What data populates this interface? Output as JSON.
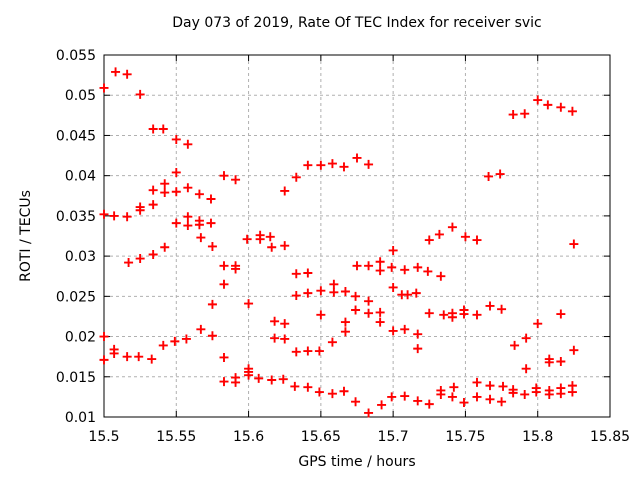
{
  "page": {
    "background": "#ffffff"
  },
  "chart_data": {
    "type": "scatter",
    "title": "Day 073 of 2019, Rate Of TEC Index for receiver svic",
    "xlabel": "GPS time / hours",
    "ylabel": "ROTI / TECUs",
    "xlim": [
      15.5,
      15.85
    ],
    "ylim": [
      0.01,
      0.055
    ],
    "x_ticks": [
      15.5,
      15.55,
      15.6,
      15.65,
      15.7,
      15.75,
      15.8,
      15.85
    ],
    "y_ticks": [
      0.01,
      0.015,
      0.02,
      0.025,
      0.03,
      0.035,
      0.04,
      0.045,
      0.05,
      0.055
    ],
    "grid": true,
    "grid_color": "#b0b0b0",
    "legend": "none",
    "marker": "plus",
    "marker_color": "#ff0000",
    "frame_color": "#000000",
    "series": [
      {
        "name": "ROTI",
        "points": [
          [
            15.508,
            0.0529
          ],
          [
            15.516,
            0.0526
          ],
          [
            15.5,
            0.0509
          ],
          [
            15.525,
            0.0501
          ],
          [
            15.534,
            0.0458
          ],
          [
            15.541,
            0.0458
          ],
          [
            15.55,
            0.0445
          ],
          [
            15.558,
            0.0439
          ],
          [
            15.55,
            0.0404
          ],
          [
            15.583,
            0.04
          ],
          [
            15.591,
            0.0395
          ],
          [
            15.542,
            0.039
          ],
          [
            15.534,
            0.0382
          ],
          [
            15.542,
            0.0379
          ],
          [
            15.55,
            0.038
          ],
          [
            15.558,
            0.0385
          ],
          [
            15.566,
            0.0377
          ],
          [
            15.574,
            0.0371
          ],
          [
            15.534,
            0.0364
          ],
          [
            15.525,
            0.0361
          ],
          [
            15.525,
            0.0357
          ],
          [
            15.5,
            0.0352
          ],
          [
            15.507,
            0.035
          ],
          [
            15.516,
            0.0349
          ],
          [
            15.558,
            0.0349
          ],
          [
            15.55,
            0.0341
          ],
          [
            15.558,
            0.0338
          ],
          [
            15.566,
            0.0344
          ],
          [
            15.566,
            0.0339
          ],
          [
            15.574,
            0.0341
          ],
          [
            15.633,
            0.0398
          ],
          [
            15.625,
            0.0381
          ],
          [
            15.641,
            0.0413
          ],
          [
            15.65,
            0.0413
          ],
          [
            15.658,
            0.0415
          ],
          [
            15.666,
            0.0411
          ],
          [
            15.675,
            0.0422
          ],
          [
            15.683,
            0.0414
          ],
          [
            15.783,
            0.0476
          ],
          [
            15.791,
            0.0477
          ],
          [
            15.8,
            0.0494
          ],
          [
            15.807,
            0.0488
          ],
          [
            15.816,
            0.0485
          ],
          [
            15.824,
            0.048
          ],
          [
            15.766,
            0.0399
          ],
          [
            15.774,
            0.0402
          ],
          [
            15.567,
            0.0323
          ],
          [
            15.575,
            0.0312
          ],
          [
            15.599,
            0.0321
          ],
          [
            15.608,
            0.0326
          ],
          [
            15.608,
            0.0321
          ],
          [
            15.615,
            0.0324
          ],
          [
            15.616,
            0.0311
          ],
          [
            15.625,
            0.0313
          ],
          [
            15.725,
            0.032
          ],
          [
            15.732,
            0.0327
          ],
          [
            15.741,
            0.0336
          ],
          [
            15.75,
            0.0324
          ],
          [
            15.758,
            0.032
          ],
          [
            15.825,
            0.0315
          ],
          [
            15.542,
            0.0311
          ],
          [
            15.534,
            0.0302
          ],
          [
            15.525,
            0.0297
          ],
          [
            15.517,
            0.0292
          ],
          [
            15.583,
            0.0288
          ],
          [
            15.591,
            0.0288
          ],
          [
            15.591,
            0.0284
          ],
          [
            15.583,
            0.0265
          ],
          [
            15.575,
            0.024
          ],
          [
            15.6,
            0.0241
          ],
          [
            15.567,
            0.0209
          ],
          [
            15.575,
            0.0201
          ],
          [
            15.557,
            0.0197
          ],
          [
            15.549,
            0.0194
          ],
          [
            15.541,
            0.0189
          ],
          [
            15.507,
            0.0184
          ],
          [
            15.507,
            0.0179
          ],
          [
            15.5,
            0.02
          ],
          [
            15.5,
            0.0171
          ],
          [
            15.516,
            0.0175
          ],
          [
            15.524,
            0.0175
          ],
          [
            15.533,
            0.0172
          ],
          [
            15.633,
            0.0278
          ],
          [
            15.641,
            0.0279
          ],
          [
            15.675,
            0.0288
          ],
          [
            15.683,
            0.0288
          ],
          [
            15.691,
            0.0293
          ],
          [
            15.691,
            0.0282
          ],
          [
            15.699,
            0.0286
          ],
          [
            15.7,
            0.0307
          ],
          [
            15.708,
            0.0283
          ],
          [
            15.717,
            0.0286
          ],
          [
            15.724,
            0.0281
          ],
          [
            15.733,
            0.0275
          ],
          [
            15.7,
            0.0261
          ],
          [
            15.65,
            0.0257
          ],
          [
            15.659,
            0.0265
          ],
          [
            15.659,
            0.0255
          ],
          [
            15.667,
            0.0256
          ],
          [
            15.633,
            0.0251
          ],
          [
            15.641,
            0.0254
          ],
          [
            15.674,
            0.025
          ],
          [
            15.706,
            0.0252
          ],
          [
            15.71,
            0.0252
          ],
          [
            15.716,
            0.0254
          ],
          [
            15.683,
            0.0244
          ],
          [
            15.674,
            0.0233
          ],
          [
            15.683,
            0.0229
          ],
          [
            15.65,
            0.0227
          ],
          [
            15.691,
            0.023
          ],
          [
            15.691,
            0.0218
          ],
          [
            15.667,
            0.0218
          ],
          [
            15.667,
            0.0206
          ],
          [
            15.625,
            0.0216
          ],
          [
            15.618,
            0.0219
          ],
          [
            15.618,
            0.0198
          ],
          [
            15.625,
            0.0197
          ],
          [
            15.7,
            0.0207
          ],
          [
            15.708,
            0.0209
          ],
          [
            15.717,
            0.0203
          ],
          [
            15.658,
            0.0193
          ],
          [
            15.633,
            0.0181
          ],
          [
            15.641,
            0.0182
          ],
          [
            15.649,
            0.0182
          ],
          [
            15.717,
            0.0185
          ],
          [
            15.725,
            0.0229
          ],
          [
            15.735,
            0.0227
          ],
          [
            15.741,
            0.0229
          ],
          [
            15.741,
            0.0224
          ],
          [
            15.749,
            0.0233
          ],
          [
            15.749,
            0.0228
          ],
          [
            15.758,
            0.0227
          ],
          [
            15.767,
            0.0238
          ],
          [
            15.775,
            0.0234
          ],
          [
            15.816,
            0.0228
          ],
          [
            15.8,
            0.0216
          ],
          [
            15.792,
            0.0198
          ],
          [
            15.784,
            0.0189
          ],
          [
            15.825,
            0.0183
          ],
          [
            15.808,
            0.0172
          ],
          [
            15.808,
            0.0168
          ],
          [
            15.816,
            0.0169
          ],
          [
            15.792,
            0.016
          ],
          [
            15.583,
            0.0174
          ],
          [
            15.6,
            0.016
          ],
          [
            15.6,
            0.0156
          ],
          [
            15.6,
            0.0152
          ],
          [
            15.583,
            0.0144
          ],
          [
            15.591,
            0.0149
          ],
          [
            15.591,
            0.0143
          ],
          [
            15.607,
            0.0148
          ],
          [
            15.616,
            0.0146
          ],
          [
            15.624,
            0.0147
          ],
          [
            15.632,
            0.0138
          ],
          [
            15.641,
            0.0137
          ],
          [
            15.649,
            0.0131
          ],
          [
            15.658,
            0.0129
          ],
          [
            15.666,
            0.0132
          ],
          [
            15.674,
            0.0119
          ],
          [
            15.683,
            0.0105
          ],
          [
            15.692,
            0.0115
          ],
          [
            15.699,
            0.0125
          ],
          [
            15.708,
            0.0126
          ],
          [
            15.717,
            0.012
          ],
          [
            15.725,
            0.0116
          ],
          [
            15.733,
            0.0133
          ],
          [
            15.733,
            0.0128
          ],
          [
            15.742,
            0.0137
          ],
          [
            15.741,
            0.0125
          ],
          [
            15.749,
            0.0118
          ],
          [
            15.758,
            0.0143
          ],
          [
            15.758,
            0.0125
          ],
          [
            15.767,
            0.0139
          ],
          [
            15.767,
            0.0122
          ],
          [
            15.776,
            0.0138
          ],
          [
            15.775,
            0.0119
          ],
          [
            15.783,
            0.0134
          ],
          [
            15.783,
            0.013
          ],
          [
            15.791,
            0.0128
          ],
          [
            15.799,
            0.0136
          ],
          [
            15.799,
            0.0131
          ],
          [
            15.808,
            0.0133
          ],
          [
            15.808,
            0.0128
          ],
          [
            15.816,
            0.0136
          ],
          [
            15.816,
            0.0129
          ],
          [
            15.824,
            0.0139
          ],
          [
            15.824,
            0.0131
          ]
        ]
      }
    ]
  }
}
